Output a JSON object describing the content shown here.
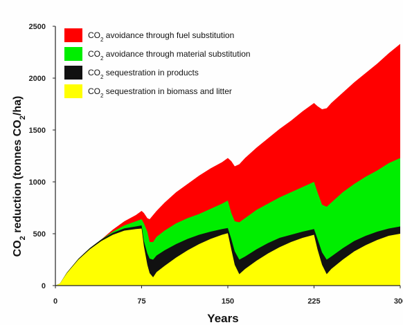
{
  "chart_data": {
    "type": "area",
    "stacked": true,
    "xlabel": "Years",
    "ylabel_parts": [
      "CO",
      "2",
      " reduction (tonnes CO",
      "2",
      "/ha)"
    ],
    "xlim": [
      0,
      300
    ],
    "ylim": [
      0,
      2500
    ],
    "x_ticks": [
      0,
      75,
      150,
      225,
      300
    ],
    "y_ticks": [
      0,
      500,
      1000,
      1500,
      2000,
      2500
    ],
    "grid": false,
    "legend_position": "top-left",
    "series": [
      {
        "label_parts": [
          "CO",
          "2",
          " sequestration in biomass and litter"
        ],
        "color": "#ffff00",
        "points": [
          [
            0,
            0
          ],
          [
            4,
            20
          ],
          [
            10,
            120
          ],
          [
            20,
            250
          ],
          [
            30,
            350
          ],
          [
            40,
            430
          ],
          [
            50,
            490
          ],
          [
            60,
            530
          ],
          [
            70,
            545
          ],
          [
            75,
            550
          ],
          [
            77,
            380
          ],
          [
            80,
            200
          ],
          [
            82,
            120
          ],
          [
            85,
            80
          ],
          [
            88,
            130
          ],
          [
            95,
            190
          ],
          [
            105,
            270
          ],
          [
            115,
            340
          ],
          [
            125,
            400
          ],
          [
            135,
            450
          ],
          [
            145,
            490
          ],
          [
            150,
            505
          ],
          [
            153,
            350
          ],
          [
            156,
            200
          ],
          [
            160,
            110
          ],
          [
            165,
            160
          ],
          [
            175,
            240
          ],
          [
            185,
            310
          ],
          [
            195,
            370
          ],
          [
            205,
            420
          ],
          [
            215,
            460
          ],
          [
            225,
            490
          ],
          [
            228,
            350
          ],
          [
            232,
            200
          ],
          [
            236,
            110
          ],
          [
            240,
            160
          ],
          [
            250,
            250
          ],
          [
            260,
            330
          ],
          [
            270,
            390
          ],
          [
            280,
            440
          ],
          [
            290,
            480
          ],
          [
            300,
            500
          ]
        ]
      },
      {
        "label_parts": [
          "CO",
          "2",
          " sequestration in products"
        ],
        "color": "#111111",
        "points": [
          [
            0,
            0
          ],
          [
            4,
            20
          ],
          [
            10,
            125
          ],
          [
            20,
            258
          ],
          [
            30,
            362
          ],
          [
            40,
            445
          ],
          [
            50,
            508
          ],
          [
            60,
            552
          ],
          [
            70,
            570
          ],
          [
            75,
            580
          ],
          [
            77,
            430
          ],
          [
            80,
            310
          ],
          [
            82,
            260
          ],
          [
            85,
            250
          ],
          [
            88,
            290
          ],
          [
            95,
            340
          ],
          [
            105,
            400
          ],
          [
            115,
            450
          ],
          [
            125,
            490
          ],
          [
            135,
            520
          ],
          [
            145,
            545
          ],
          [
            150,
            555
          ],
          [
            153,
            450
          ],
          [
            156,
            330
          ],
          [
            160,
            250
          ],
          [
            165,
            280
          ],
          [
            175,
            350
          ],
          [
            185,
            410
          ],
          [
            195,
            460
          ],
          [
            205,
            490
          ],
          [
            215,
            520
          ],
          [
            225,
            545
          ],
          [
            228,
            450
          ],
          [
            232,
            320
          ],
          [
            236,
            250
          ],
          [
            240,
            280
          ],
          [
            250,
            360
          ],
          [
            260,
            430
          ],
          [
            270,
            480
          ],
          [
            280,
            520
          ],
          [
            290,
            550
          ],
          [
            300,
            570
          ]
        ]
      },
      {
        "label_parts": [
          "CO",
          "2",
          " avoidance through material substitution"
        ],
        "color": "#00ee00",
        "points": [
          [
            0,
            0
          ],
          [
            4,
            20
          ],
          [
            10,
            125
          ],
          [
            20,
            258
          ],
          [
            30,
            362
          ],
          [
            40,
            445
          ],
          [
            50,
            520
          ],
          [
            60,
            580
          ],
          [
            70,
            620
          ],
          [
            75,
            640
          ],
          [
            77,
            600
          ],
          [
            80,
            520
          ],
          [
            82,
            420
          ],
          [
            85,
            420
          ],
          [
            88,
            470
          ],
          [
            95,
            530
          ],
          [
            105,
            600
          ],
          [
            115,
            650
          ],
          [
            125,
            690
          ],
          [
            135,
            740
          ],
          [
            145,
            790
          ],
          [
            150,
            820
          ],
          [
            153,
            700
          ],
          [
            156,
            620
          ],
          [
            160,
            610
          ],
          [
            165,
            650
          ],
          [
            175,
            730
          ],
          [
            185,
            790
          ],
          [
            195,
            850
          ],
          [
            205,
            900
          ],
          [
            215,
            950
          ],
          [
            225,
            1000
          ],
          [
            228,
            900
          ],
          [
            232,
            780
          ],
          [
            236,
            760
          ],
          [
            240,
            800
          ],
          [
            250,
            900
          ],
          [
            260,
            980
          ],
          [
            270,
            1050
          ],
          [
            280,
            1110
          ],
          [
            290,
            1180
          ],
          [
            300,
            1230
          ]
        ]
      },
      {
        "label_parts": [
          "CO",
          "2",
          " avoidance through fuel substitution"
        ],
        "color": "#ff0000",
        "points": [
          [
            0,
            0
          ],
          [
            4,
            20
          ],
          [
            10,
            125
          ],
          [
            20,
            258
          ],
          [
            30,
            362
          ],
          [
            40,
            445
          ],
          [
            50,
            540
          ],
          [
            60,
            620
          ],
          [
            70,
            680
          ],
          [
            75,
            720
          ],
          [
            77,
            700
          ],
          [
            80,
            650
          ],
          [
            82,
            640
          ],
          [
            85,
            680
          ],
          [
            88,
            720
          ],
          [
            95,
            800
          ],
          [
            105,
            900
          ],
          [
            115,
            980
          ],
          [
            125,
            1060
          ],
          [
            135,
            1130
          ],
          [
            145,
            1190
          ],
          [
            150,
            1230
          ],
          [
            153,
            1200
          ],
          [
            156,
            1150
          ],
          [
            160,
            1170
          ],
          [
            165,
            1230
          ],
          [
            175,
            1330
          ],
          [
            185,
            1420
          ],
          [
            195,
            1510
          ],
          [
            205,
            1590
          ],
          [
            215,
            1680
          ],
          [
            225,
            1760
          ],
          [
            228,
            1730
          ],
          [
            232,
            1700
          ],
          [
            236,
            1710
          ],
          [
            240,
            1760
          ],
          [
            250,
            1860
          ],
          [
            260,
            1960
          ],
          [
            270,
            2050
          ],
          [
            280,
            2140
          ],
          [
            290,
            2240
          ],
          [
            300,
            2330
          ]
        ]
      }
    ]
  }
}
